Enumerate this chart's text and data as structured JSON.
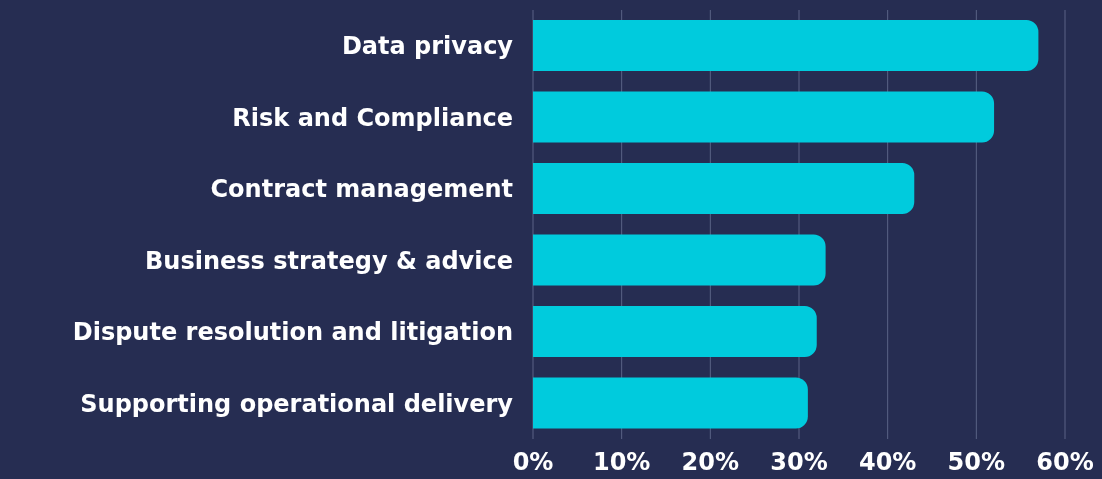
{
  "chart_data": {
    "type": "bar",
    "orientation": "horizontal",
    "categories": [
      "Data privacy",
      "Risk and Compliance",
      "Contract management",
      "Business strategy & advice",
      "Dispute resolution and litigation",
      "Supporting operational delivery"
    ],
    "values": [
      57,
      52,
      43,
      33,
      32,
      31
    ],
    "color": "#00cbdd",
    "xlim": [
      0,
      60
    ],
    "xticks": [
      {
        "value": 0,
        "label": "0%"
      },
      {
        "value": 10,
        "label": "10%"
      },
      {
        "value": 20,
        "label": "20%"
      },
      {
        "value": 30,
        "label": "30%"
      },
      {
        "value": 40,
        "label": "40%"
      },
      {
        "value": 50,
        "label": "50%"
      },
      {
        "value": 60,
        "label": "60%"
      }
    ],
    "grid": "x"
  }
}
